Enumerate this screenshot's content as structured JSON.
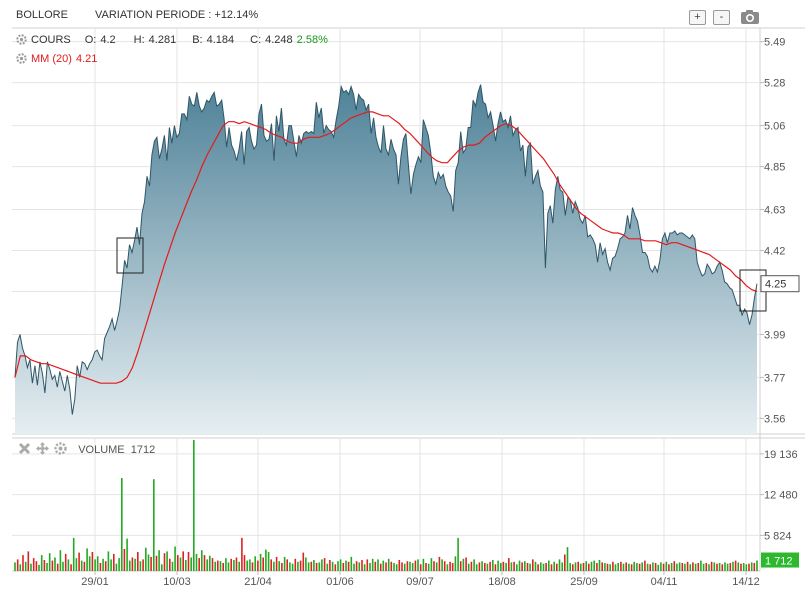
{
  "header": {
    "symbol": "BOLLORE",
    "variation_label": "VARIATION PERIODE : +12.14%",
    "zoom_in": "+",
    "zoom_out": "-"
  },
  "legend": {
    "cours_label": "COURS",
    "o_label": "O:",
    "o_value": "4.2",
    "h_label": "H:",
    "h_value": "4.281",
    "b_label": "B:",
    "b_value": "4.184",
    "c_label": "C:",
    "c_value": "4.248",
    "change": "2.58%",
    "mm_label": "MM (20)",
    "mm_value": "4.21"
  },
  "volume_panel": {
    "label": "VOLUME",
    "value": "1712"
  },
  "colors": {
    "area_top": "#4f8298",
    "area_bottom": "#e6eef2",
    "line": "#2f5668",
    "ma": "#e31b1b",
    "up": "#22aa22",
    "down": "#dd2222",
    "grid": "#e4e4e4",
    "change_green": "#1a9a1a",
    "last_tag": "#ffffff",
    "vol_tag": "#2db82d"
  },
  "chart_data": [
    {
      "type": "area",
      "title": "BOLLORE",
      "y_ticks": [
        5.49,
        5.28,
        5.06,
        4.85,
        4.63,
        4.42,
        4.21,
        3.99,
        3.77,
        3.56
      ],
      "y_tick_labels": [
        "5.49",
        "5.28",
        "5.06",
        "4.85",
        "4.63",
        "4.42",
        "",
        "3.99",
        "3.77",
        "3.56"
      ],
      "ylim": [
        3.48,
        5.56
      ],
      "x_tick_labels": [
        "29/01",
        "10/03",
        "21/04",
        "01/06",
        "09/07",
        "18/08",
        "25/09",
        "04/11",
        "14/12"
      ],
      "last_value_label": "4.25",
      "series": [
        {
          "name": "COURS",
          "values": [
            3.77,
            3.95,
            3.99,
            3.92,
            3.88,
            3.82,
            3.86,
            3.74,
            3.83,
            3.73,
            3.85,
            3.79,
            3.69,
            3.85,
            3.81,
            3.76,
            3.78,
            3.72,
            3.8,
            3.75,
            3.7,
            3.78,
            3.71,
            3.58,
            3.66,
            3.83,
            3.77,
            3.85,
            3.84,
            3.81,
            3.84,
            3.86,
            3.9,
            3.91,
            3.88,
            3.86,
            3.97,
            4.0,
            4.03,
            4.07,
            4.01,
            4.06,
            4.12,
            4.24,
            4.37,
            4.33,
            4.45,
            4.41,
            4.47,
            4.54,
            4.45,
            4.61,
            4.67,
            4.8,
            4.75,
            4.91,
            4.98,
            5.0,
            4.89,
            4.94,
            5.01,
            4.88,
            5.05,
            4.97,
            5.06,
            5.0,
            5.02,
            5.12,
            5.12,
            5.09,
            5.21,
            5.17,
            5.16,
            5.23,
            5.16,
            5.13,
            5.15,
            5.19,
            5.18,
            5.21,
            5.23,
            5.16,
            5.17,
            5.19,
            5.09,
            4.95,
            5.05,
            4.96,
            4.93,
            4.88,
            4.94,
            5.03,
            4.86,
            5.03,
            5.05,
            4.98,
            4.94,
            4.96,
            5.12,
            5.17,
            5.01,
            4.98,
            4.99,
            5.07,
            4.88,
            5.11,
            5.03,
            5.15,
            4.99,
            4.96,
            5.06,
            5.06,
            4.98,
            4.9,
            5.01,
            4.97,
            5.02,
            5.03,
            5.02,
            5.03,
            5.02,
            5.18,
            5.1,
            5.15,
            5.02,
            5.06,
            5.04,
            5.03,
            5.0,
            5.09,
            5.16,
            5.26,
            5.23,
            5.24,
            5.22,
            5.26,
            5.22,
            5.14,
            5.22,
            5.2,
            5.19,
            5.14,
            5.17,
            5.02,
            5.1,
            5.0,
            4.95,
            4.92,
            5.06,
            4.94,
            4.91,
            4.99,
            4.94,
            4.91,
            4.76,
            4.9,
            4.99,
            5.02,
            4.86,
            4.71,
            4.81,
            4.86,
            4.9,
            4.87,
            5.09,
            5.05,
            5.01,
            4.92,
            4.8,
            4.76,
            4.82,
            4.79,
            4.81,
            4.75,
            4.72,
            4.7,
            4.62,
            4.83,
            4.87,
            5.03,
            4.92,
            4.94,
            5.05,
            5.05,
            5.19,
            5.16,
            5.23,
            5.27,
            5.18,
            5.17,
            5.1,
            5.13,
            5.06,
            4.98,
            5.07,
            5.13,
            5.08,
            5.09,
            5.05,
            5.11,
            5.01,
            5.04,
            5.05,
            4.93,
            4.96,
            4.8,
            4.95,
            4.97,
            4.76,
            4.8,
            4.83,
            4.75,
            4.72,
            4.33,
            4.61,
            4.65,
            4.56,
            4.73,
            4.8,
            4.73,
            4.72,
            4.6,
            4.69,
            4.68,
            4.61,
            4.67,
            4.64,
            4.58,
            4.56,
            4.6,
            4.49,
            4.5,
            4.48,
            4.45,
            4.36,
            4.46,
            4.4,
            4.43,
            4.36,
            4.32,
            4.38,
            4.39,
            4.43,
            4.48,
            4.49,
            4.51,
            4.6,
            4.53,
            4.64,
            4.6,
            4.57,
            4.5,
            4.41,
            4.41,
            4.39,
            4.33,
            4.31,
            4.34,
            4.31,
            4.37,
            4.48,
            4.51,
            4.46,
            4.51,
            4.51,
            4.52,
            4.5,
            4.51,
            4.51,
            4.5,
            4.49,
            4.48,
            4.5,
            4.48,
            4.36,
            4.32,
            4.29,
            4.3,
            4.35,
            4.33,
            4.3,
            4.31,
            4.34,
            4.36,
            4.32,
            4.26,
            4.25,
            4.23,
            4.22,
            4.18,
            4.14,
            4.14,
            4.09,
            4.12,
            4.1,
            4.04,
            4.09,
            4.18,
            4.25
          ]
        },
        {
          "name": "MM (20)",
          "values": [
            3.77,
            3.88,
            3.88,
            3.86,
            3.85,
            3.84,
            3.84,
            3.83,
            3.82,
            3.81,
            3.8,
            3.79,
            3.78,
            3.77,
            3.76,
            3.75,
            3.74,
            3.74,
            3.74,
            3.74,
            3.75,
            3.77,
            3.82,
            3.9,
            3.99,
            4.08,
            4.17,
            4.26,
            4.35,
            4.43,
            4.51,
            4.58,
            4.65,
            4.72,
            4.78,
            4.85,
            4.91,
            4.96,
            5.01,
            5.06,
            5.08,
            5.08,
            5.07,
            5.08,
            5.07,
            5.06,
            5.05,
            5.04,
            5.02,
            5.01,
            5.0,
            4.98,
            4.97,
            4.97,
            4.99,
            5.0,
            5.0,
            5.0,
            5.01,
            5.02,
            5.04,
            5.06,
            5.08,
            5.1,
            5.11,
            5.12,
            5.13,
            5.13,
            5.12,
            5.11,
            5.11,
            5.09,
            5.07,
            5.04,
            5.02,
            4.99,
            4.96,
            4.93,
            4.9,
            4.88,
            4.87,
            4.87,
            4.9,
            4.93,
            4.95,
            4.96,
            4.96,
            4.97,
            5.0,
            5.02,
            5.04,
            5.06,
            5.07,
            5.06,
            5.04,
            5.01,
            4.98,
            4.95,
            4.92,
            4.89,
            4.85,
            4.81,
            4.76,
            4.72,
            4.68,
            4.64,
            4.61,
            4.59,
            4.57,
            4.55,
            4.53,
            4.52,
            4.51,
            4.51,
            4.5,
            4.48,
            4.48,
            4.48,
            4.47,
            4.47,
            4.47,
            4.46,
            4.45,
            4.46,
            4.46,
            4.45,
            4.44,
            4.43,
            4.42,
            4.41,
            4.4,
            4.38,
            4.36,
            4.34,
            4.32,
            4.29,
            4.27,
            4.24,
            4.22,
            4.21
          ]
        }
      ]
    },
    {
      "type": "bar",
      "title": "VOLUME",
      "y_ticks": [
        19136,
        12480,
        5824
      ],
      "y_tick_labels": [
        "19 136",
        "12 480",
        "5 824"
      ],
      "ylim": [
        0,
        21400
      ],
      "last_value_label": "1 712",
      "values": [
        1400,
        1900,
        1100,
        2600,
        1500,
        3200,
        1200,
        2100,
        1600,
        1000,
        2600,
        1800,
        1300,
        2900,
        1700,
        2200,
        1200,
        3400,
        1500,
        2800,
        1900,
        1100,
        5400,
        2100,
        3000,
        1700,
        1500,
        3700,
        2400,
        3100,
        1900,
        2400,
        1300,
        2000,
        1600,
        3200,
        1900,
        2800,
        1200,
        2100,
        15200,
        3600,
        5300,
        1700,
        2200,
        2000,
        3100,
        1600,
        1900,
        3800,
        2700,
        2300,
        15000,
        2500,
        3400,
        1100,
        2900,
        3200,
        2000,
        1500,
        4000,
        2600,
        2200,
        3200,
        1800,
        3100,
        2200,
        21400,
        2800,
        2100,
        3400,
        2600,
        1900,
        2500,
        2100,
        1500,
        1700,
        1600,
        1300,
        2100,
        1400,
        2000,
        1800,
        2200,
        1500,
        5400,
        2600,
        1700,
        1900,
        1400,
        2400,
        1700,
        2800,
        2200,
        3500,
        3100,
        1900,
        1500,
        2300,
        1600,
        1300,
        2300,
        1900,
        1400,
        1200,
        2000,
        1500,
        1700,
        3000,
        2200,
        1400,
        1500,
        1800,
        1300,
        1400,
        1900,
        2100,
        1200,
        1800,
        1500,
        1100,
        1600,
        1900,
        1300,
        1700,
        1500,
        2300,
        1200,
        1600,
        1400,
        1800,
        1100,
        1900,
        1300,
        2000,
        1500,
        1900,
        1200,
        1700,
        1400,
        2000,
        1500,
        1300,
        1100,
        1800,
        1400,
        1200,
        1600,
        1500,
        1300,
        1700,
        1900,
        1100,
        2000,
        1300,
        1200,
        2100,
        1600,
        1400,
        2300,
        1900,
        1600,
        1100,
        1500,
        1300,
        2400,
        5400,
        1600,
        2000,
        2200,
        1200,
        1500,
        1900,
        1100,
        1400,
        1600,
        1300,
        1200,
        1500,
        1800,
        1100,
        1700,
        1300,
        1500,
        1300,
        2100,
        1400,
        1500,
        1100,
        1700,
        1400,
        1600,
        1300,
        1200,
        1900,
        1500,
        1100,
        1400,
        1200,
        1300,
        1700,
        1100,
        1500,
        1200,
        1900,
        1400,
        2700,
        3900,
        1300,
        1100,
        1400,
        1500,
        1200,
        1300,
        1600,
        1200,
        1500,
        1700,
        1300,
        1800,
        1400,
        1300,
        1200,
        1100,
        1500,
        1100,
        1300,
        1500,
        1200,
        1400,
        1200,
        1100,
        1500,
        1300,
        1200,
        1400,
        1700,
        1200,
        1100,
        1400,
        1300,
        1000,
        1400,
        1200,
        1500,
        1100,
        1300,
        1600,
        1200,
        1400,
        1300,
        1200,
        1500,
        1100,
        1400,
        1200,
        1300,
        1700,
        1200,
        1300,
        1100,
        1500,
        1400,
        1200,
        1300,
        1100,
        1400,
        1200,
        1300,
        1500,
        1700,
        1400,
        1200,
        1300,
        1100,
        1200,
        1400,
        1300,
        1712
      ],
      "up": [
        1,
        0,
        1,
        0,
        1,
        0,
        1,
        0,
        0,
        1,
        1,
        0,
        1,
        1,
        0,
        1,
        0,
        1,
        1,
        0,
        1,
        0,
        1,
        1,
        0,
        1,
        0,
        1,
        1,
        0,
        1,
        1,
        0,
        1,
        0,
        1,
        1,
        0,
        1,
        1,
        1,
        0,
        1,
        1,
        0,
        1,
        0,
        1,
        0,
        1,
        1,
        0,
        1,
        0,
        1,
        1,
        0,
        1,
        0,
        1,
        1,
        0,
        1,
        0,
        1,
        0,
        1,
        1,
        1,
        0,
        1,
        0,
        1,
        1,
        0,
        1,
        0,
        1,
        0,
        1,
        1,
        0,
        1,
        0,
        1,
        0,
        0,
        1,
        1,
        0,
        1,
        0,
        1,
        0,
        1,
        1,
        0,
        1,
        0,
        1,
        0,
        1,
        0,
        1,
        1,
        0,
        1,
        0,
        0,
        1,
        1,
        0,
        1,
        0,
        1,
        1,
        0,
        1,
        0,
        1,
        0,
        1,
        1,
        0,
        1,
        0,
        1,
        1,
        0,
        1,
        0,
        1,
        0,
        1,
        1,
        0,
        1,
        0,
        1,
        0,
        1,
        0,
        1,
        1,
        0,
        0,
        1,
        0,
        1,
        1,
        0,
        1,
        0,
        1,
        0,
        1,
        1,
        0,
        1,
        0,
        1,
        0,
        1,
        0,
        0,
        1,
        1,
        0,
        1,
        0,
        1,
        0,
        1,
        1,
        0,
        1,
        0,
        1,
        0,
        1,
        0,
        1,
        1,
        0,
        1,
        0,
        1,
        0,
        1,
        1,
        0,
        1,
        0,
        1,
        0,
        1,
        0,
        1,
        1,
        0,
        1,
        0,
        1,
        0,
        1,
        1,
        0,
        1,
        1,
        0,
        1,
        0,
        1,
        0,
        1,
        0,
        1,
        1,
        0,
        1,
        0,
        1,
        0,
        1,
        0,
        1,
        1,
        0,
        1,
        0,
        1,
        0,
        1,
        1,
        0,
        1,
        0,
        1,
        0,
        1,
        0,
        1,
        1,
        0,
        1,
        0,
        1,
        0,
        1,
        1,
        0,
        1,
        0,
        1,
        0,
        1,
        0,
        1,
        1,
        0,
        1,
        0,
        1,
        0,
        1,
        0,
        1,
        1,
        0,
        1,
        0,
        1,
        0,
        1,
        1,
        0,
        1,
        0,
        1,
        0,
        1,
        0,
        1,
        1,
        0,
        1,
        0,
        1,
        0,
        1,
        1
      ]
    }
  ]
}
